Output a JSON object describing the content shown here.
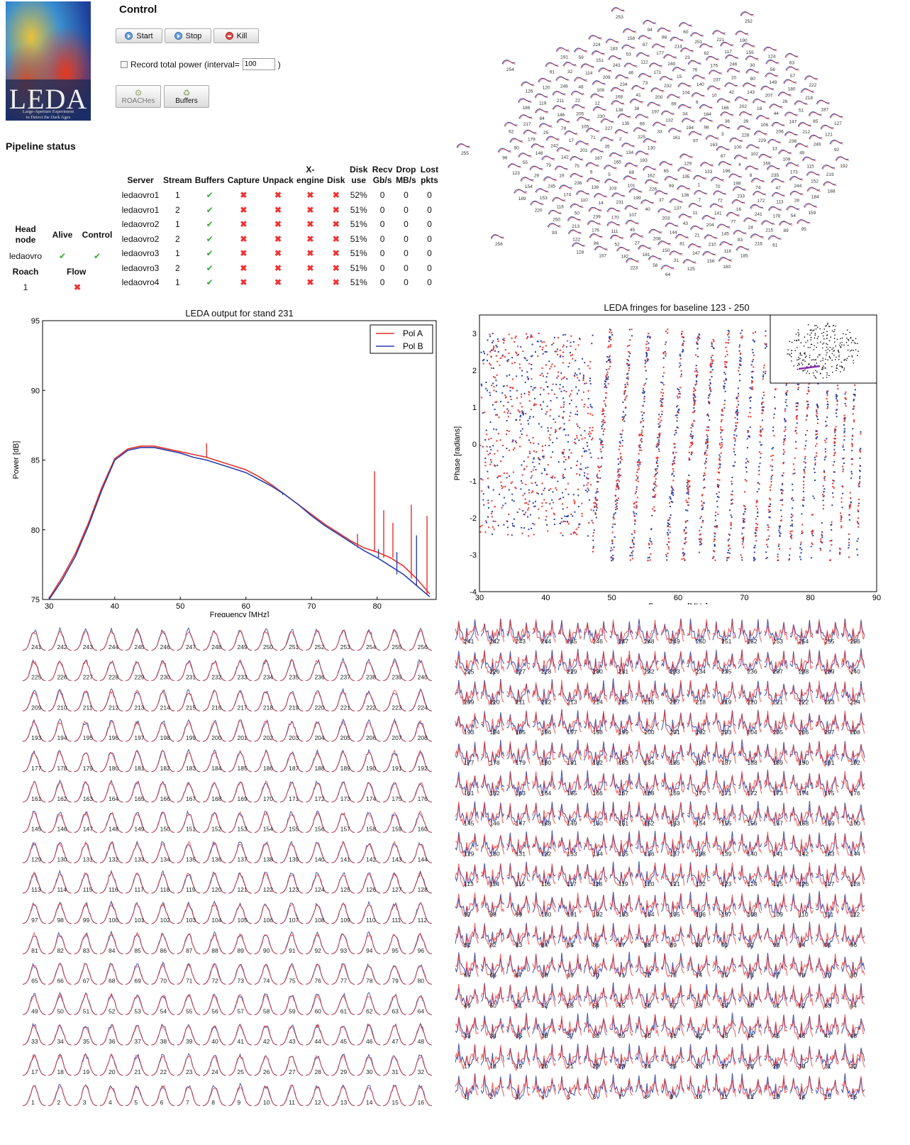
{
  "logo": {
    "title": "LEDA",
    "subtitle_line1": "Large-Aperture Experiment",
    "subtitle_line2": "to Detect the Dark Ages"
  },
  "control": {
    "title": "Control",
    "start_label": "Start",
    "stop_label": "Stop",
    "kill_label": "Kill",
    "record_label": "Record total power (interval=",
    "record_close": ")",
    "interval_value": "100",
    "roaches_label": "ROACHes",
    "buffers_label": "Buffers"
  },
  "pipeline": {
    "title": "Pipeline status",
    "columns": [
      "Server",
      "Stream",
      "Buffers",
      "Capture",
      "Unpack",
      "X-engine",
      "Disk",
      "Disk use",
      "Recv Gb/s",
      "Drop MB/s",
      "Lost pkts"
    ],
    "rows": [
      {
        "server": "ledaovro1",
        "stream": "1",
        "buffers": "ok",
        "capture": "bad",
        "unpack": "bad",
        "xengine": "bad",
        "disk": "bad",
        "disk_use": "52%",
        "recv": "0",
        "drop": "0",
        "lost": "0"
      },
      {
        "server": "ledaovro1",
        "stream": "2",
        "buffers": "ok",
        "capture": "bad",
        "unpack": "bad",
        "xengine": "bad",
        "disk": "bad",
        "disk_use": "51%",
        "recv": "0",
        "drop": "0",
        "lost": "0"
      },
      {
        "server": "ledaovro2",
        "stream": "1",
        "buffers": "ok",
        "capture": "bad",
        "unpack": "bad",
        "xengine": "bad",
        "disk": "bad",
        "disk_use": "51%",
        "recv": "0",
        "drop": "0",
        "lost": "0"
      },
      {
        "server": "ledaovro2",
        "stream": "2",
        "buffers": "ok",
        "capture": "bad",
        "unpack": "bad",
        "xengine": "bad",
        "disk": "bad",
        "disk_use": "51%",
        "recv": "0",
        "drop": "0",
        "lost": "0"
      },
      {
        "server": "ledaovro3",
        "stream": "1",
        "buffers": "ok",
        "capture": "bad",
        "unpack": "bad",
        "xengine": "bad",
        "disk": "bad",
        "disk_use": "51%",
        "recv": "0",
        "drop": "0",
        "lost": "0"
      },
      {
        "server": "ledaovro3",
        "stream": "2",
        "buffers": "ok",
        "capture": "bad",
        "unpack": "bad",
        "xengine": "bad",
        "disk": "bad",
        "disk_use": "51%",
        "recv": "0",
        "drop": "0",
        "lost": "0"
      },
      {
        "server": "ledaovro4",
        "stream": "1",
        "buffers": "ok",
        "capture": "bad",
        "unpack": "bad",
        "xengine": "bad",
        "disk": "bad",
        "disk_use": "51%",
        "recv": "0",
        "drop": "0",
        "lost": "0"
      }
    ]
  },
  "headnode": {
    "col1": "Head node",
    "col2": "Alive",
    "col3": "Control",
    "name": "ledaovro",
    "alive": "ok",
    "control": "ok",
    "roach_header": "Roach",
    "flow_header": "Flow",
    "roach_id": "1",
    "flow": "bad"
  },
  "status_icons": {
    "ok": "✔",
    "bad": "✖"
  },
  "colors": {
    "pol_a": "#e8302a",
    "pol_b": "#2a3fa8",
    "ok": "#33aa33",
    "bad": "#ee3333"
  },
  "chart_data": [
    {
      "type": "line",
      "title": "LEDA output for stand 231",
      "xlabel": "Frequency [MHz]",
      "ylabel": "Power [dB]",
      "xlim": [
        29,
        89
      ],
      "ylim": [
        75,
        95
      ],
      "xticks": [
        "30",
        "40",
        "50",
        "60",
        "70",
        "80"
      ],
      "yticks": [
        "75",
        "80",
        "85",
        "90",
        "95"
      ],
      "legend": "top-right",
      "series": [
        {
          "name": "Pol A",
          "x": [
            30,
            32,
            34,
            36,
            38,
            40,
            42,
            44,
            46,
            48,
            50,
            52,
            54,
            56,
            58,
            60,
            62,
            64,
            66,
            68,
            70,
            72,
            74,
            76,
            78,
            80,
            82,
            84,
            86,
            88
          ],
          "y": [
            75.1,
            76.6,
            78.3,
            80.5,
            83.0,
            85.1,
            85.8,
            86.0,
            86.0,
            85.8,
            85.6,
            85.4,
            85.2,
            84.9,
            84.6,
            84.3,
            83.8,
            83.2,
            82.5,
            81.8,
            81.1,
            80.4,
            79.8,
            79.2,
            78.7,
            78.4,
            78.0,
            77.4,
            76.5,
            75.4
          ]
        },
        {
          "name": "Pol B",
          "x": [
            30,
            32,
            34,
            36,
            38,
            40,
            42,
            44,
            46,
            48,
            50,
            52,
            54,
            56,
            58,
            60,
            62,
            64,
            66,
            68,
            70,
            72,
            74,
            76,
            78,
            80,
            82,
            84,
            86,
            88
          ],
          "y": [
            75.0,
            76.4,
            78.1,
            80.3,
            82.8,
            85.0,
            85.7,
            85.9,
            85.9,
            85.7,
            85.5,
            85.2,
            85.0,
            84.7,
            84.4,
            84.1,
            83.6,
            83.1,
            82.5,
            81.8,
            81.0,
            80.3,
            79.7,
            79.1,
            78.5,
            78.0,
            77.4,
            76.8,
            76.0,
            75.2
          ]
        }
      ]
    },
    {
      "type": "scatter",
      "title": "LEDA fringes for baseline 123 - 250",
      "xlabel": "Frequency [MHz]",
      "ylabel": "Phase [radians]",
      "xlim": [
        30,
        90
      ],
      "ylim": [
        -4,
        3.5
      ],
      "xticks": [
        "30",
        "40",
        "50",
        "60",
        "70",
        "80",
        "90"
      ],
      "yticks": [
        "-4",
        "-3",
        "-2",
        "-1",
        "0",
        "1",
        "2",
        "3"
      ]
    }
  ],
  "antenna_map": {
    "labels": [
      "253",
      "252",
      "161",
      "129",
      "130",
      "97",
      "65",
      "33",
      "254",
      "193",
      "194",
      "195",
      "225",
      "163",
      "162",
      "132",
      "133",
      "134",
      "98",
      "99",
      "66",
      "67",
      "68",
      "34",
      "1",
      "2",
      "3",
      "226",
      "197",
      "196",
      "165",
      "164",
      "136",
      "135",
      "100",
      "101",
      "69",
      "70",
      "35",
      "36",
      "37",
      "38",
      "4",
      "5",
      "6",
      "7",
      "227",
      "228",
      "199",
      "200",
      "198",
      "167",
      "166",
      "137",
      "138",
      "102",
      "103",
      "104",
      "72",
      "71",
      "39",
      "40",
      "41",
      "8",
      "9",
      "10",
      "11",
      "230",
      "229",
      "231",
      "232",
      "233",
      "201",
      "202",
      "203",
      "168",
      "169",
      "139",
      "140",
      "141",
      "105",
      "106",
      "107",
      "73",
      "74",
      "75",
      "42",
      "43",
      "12",
      "13",
      "14",
      "15",
      "16",
      "17",
      "18",
      "255",
      "234",
      "235",
      "236",
      "237",
      "204",
      "205",
      "206",
      "170",
      "171",
      "172",
      "142",
      "143",
      "144",
      "108",
      "109",
      "110",
      "76",
      "77",
      "78",
      "44",
      "45",
      "46",
      "47",
      "19",
      "20",
      "21",
      "22",
      "238",
      "239",
      "240",
      "241",
      "242",
      "207",
      "208",
      "209",
      "173",
      "174",
      "175",
      "145",
      "146",
      "147",
      "111",
      "112",
      "113",
      "79",
      "80",
      "81",
      "48",
      "49",
      "50",
      "23",
      "24",
      "25",
      "26",
      "27",
      "243",
      "244",
      "245",
      "246",
      "210",
      "211",
      "212",
      "176",
      "177",
      "178",
      "148",
      "149",
      "150",
      "114",
      "115",
      "116",
      "82",
      "83",
      "84",
      "51",
      "52",
      "53",
      "28",
      "29",
      "30",
      "247",
      "248",
      "249",
      "213",
      "214",
      "215",
      "179",
      "180",
      "181",
      "151",
      "152",
      "153",
      "117",
      "118",
      "119",
      "85",
      "86",
      "87",
      "54",
      "55",
      "56",
      "31",
      "32",
      "256",
      "250",
      "251",
      "216",
      "217",
      "218",
      "182",
      "183",
      "184",
      "154",
      "155",
      "156",
      "120",
      "121",
      "122",
      "88",
      "89",
      "90",
      "57",
      "58",
      "59",
      "219",
      "220",
      "221",
      "185",
      "186",
      "187",
      "157",
      "158",
      "159",
      "123",
      "124",
      "125",
      "91",
      "92",
      "93",
      "60",
      "61",
      "62",
      "222",
      "223",
      "224",
      "188",
      "189",
      "190",
      "160",
      "126",
      "127",
      "128",
      "94",
      "95",
      "96",
      "63",
      "64",
      "191",
      "192"
    ]
  },
  "bandpass_grid": {
    "rows": [
      [
        "241",
        "242",
        "243",
        "244",
        "245",
        "246",
        "247",
        "248",
        "249",
        "250",
        "251",
        "252",
        "253",
        "254",
        "255",
        "256"
      ],
      [
        "225",
        "226",
        "227",
        "228",
        "229",
        "230",
        "231",
        "232",
        "233",
        "234",
        "235",
        "236",
        "237",
        "238",
        "239",
        "240"
      ],
      [
        "209",
        "210",
        "211",
        "212",
        "213",
        "214",
        "215",
        "216",
        "217",
        "218",
        "219",
        "220",
        "221",
        "222",
        "223",
        "224"
      ],
      [
        "193",
        "194",
        "195",
        "196",
        "197",
        "198",
        "199",
        "200",
        "201",
        "202",
        "203",
        "204",
        "205",
        "206",
        "207",
        "208"
      ],
      [
        "177",
        "178",
        "179",
        "180",
        "181",
        "182",
        "183",
        "184",
        "185",
        "186",
        "187",
        "188",
        "189",
        "190",
        "191",
        "192"
      ],
      [
        "161",
        "162",
        "163",
        "164",
        "165",
        "166",
        "167",
        "168",
        "169",
        "170",
        "171",
        "172",
        "173",
        "174",
        "175",
        "176"
      ],
      [
        "145",
        "146",
        "147",
        "148",
        "149",
        "150",
        "151",
        "152",
        "153",
        "154",
        "155",
        "156",
        "157",
        "158",
        "159",
        "160"
      ],
      [
        "129",
        "130",
        "131",
        "132",
        "133",
        "134",
        "135",
        "136",
        "137",
        "138",
        "139",
        "140",
        "141",
        "142",
        "143",
        "144"
      ],
      [
        "113",
        "114",
        "115",
        "116",
        "117",
        "118",
        "119",
        "120",
        "121",
        "122",
        "123",
        "124",
        "125",
        "126",
        "127",
        "128"
      ],
      [
        "97",
        "98",
        "99",
        "100",
        "101",
        "102",
        "103",
        "104",
        "105",
        "106",
        "107",
        "108",
        "109",
        "110",
        "111",
        "112"
      ],
      [
        "81",
        "82",
        "83",
        "84",
        "85",
        "86",
        "87",
        "88",
        "89",
        "90",
        "91",
        "92",
        "93",
        "94",
        "95",
        "96"
      ],
      [
        "65",
        "66",
        "67",
        "68",
        "69",
        "70",
        "71",
        "72",
        "73",
        "74",
        "75",
        "76",
        "77",
        "78",
        "79",
        "80"
      ],
      [
        "49",
        "50",
        "51",
        "52",
        "53",
        "54",
        "55",
        "56",
        "57",
        "58",
        "59",
        "60",
        "61",
        "62",
        "63",
        "64"
      ],
      [
        "33",
        "34",
        "35",
        "36",
        "37",
        "38",
        "39",
        "40",
        "41",
        "42",
        "43",
        "44",
        "45",
        "46",
        "47",
        "48"
      ],
      [
        "17",
        "18",
        "19",
        "20",
        "21",
        "22",
        "23",
        "24",
        "25",
        "26",
        "27",
        "28",
        "29",
        "30",
        "31",
        "32"
      ],
      [
        "1",
        "2",
        "3",
        "4",
        "5",
        "6",
        "7",
        "8",
        "9",
        "10",
        "11",
        "12",
        "13",
        "14",
        "15",
        "16"
      ]
    ]
  }
}
